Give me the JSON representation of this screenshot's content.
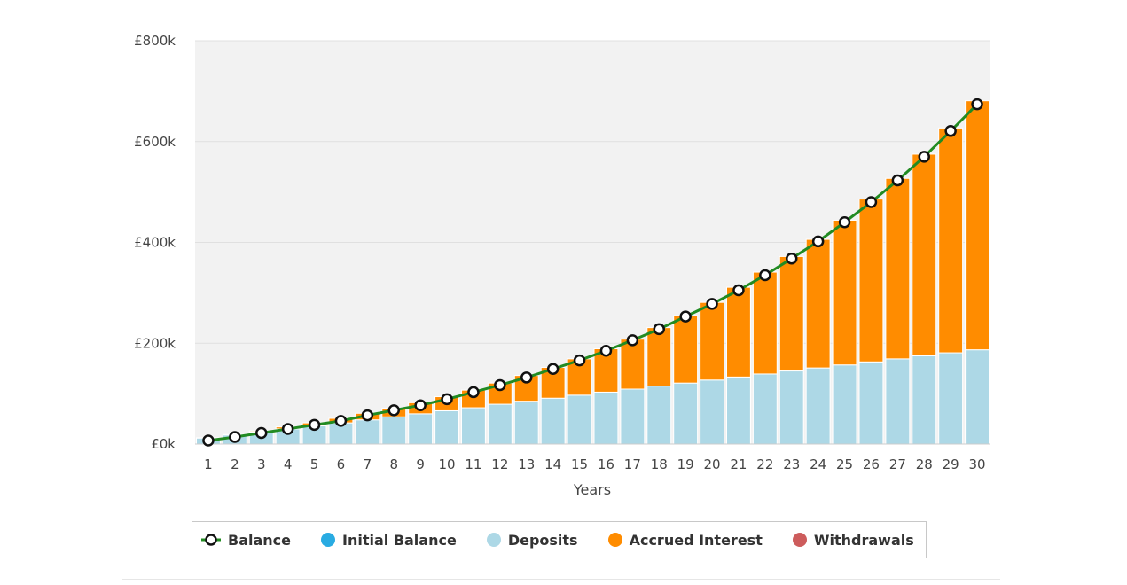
{
  "chart_data": {
    "type": "bar",
    "stacked": true,
    "xlabel": "Years",
    "ylabel": "",
    "ylim": [
      0,
      800000
    ],
    "yticks": [
      0,
      200000,
      400000,
      600000,
      800000
    ],
    "ytick_labels": [
      "£0k",
      "£200k",
      "£400k",
      "£600k",
      "£800k"
    ],
    "grid": true,
    "legend_position": "bottom",
    "categories": [
      "1",
      "2",
      "3",
      "4",
      "5",
      "6",
      "7",
      "8",
      "9",
      "10",
      "11",
      "12",
      "13",
      "14",
      "15",
      "16",
      "17",
      "18",
      "19",
      "20",
      "21",
      "22",
      "23",
      "24",
      "25",
      "26",
      "27",
      "28",
      "29",
      "30"
    ],
    "series": [
      {
        "name": "Initial Balance",
        "kind": "bar",
        "color": "#29abe2",
        "values": [
          0,
          0,
          0,
          0,
          0,
          0,
          0,
          0,
          0,
          0,
          0,
          0,
          0,
          0,
          0,
          0,
          0,
          0,
          0,
          0,
          0,
          0,
          0,
          0,
          0,
          0,
          0,
          0,
          0,
          0
        ]
      },
      {
        "name": "Deposits",
        "kind": "bar",
        "color": "#add8e6",
        "values": [
          12000,
          18000,
          24000,
          30000,
          36000,
          42000,
          48000,
          54000,
          60000,
          66000,
          72000,
          79000,
          85000,
          91000,
          97000,
          103000,
          109000,
          115000,
          121000,
          127000,
          133000,
          139000,
          145000,
          151000,
          157000,
          163000,
          169000,
          175000,
          181000,
          187000
        ]
      },
      {
        "name": "Accrued Interest",
        "kind": "bar",
        "color": "#ff8c00",
        "values": [
          500,
          1000,
          2000,
          4000,
          6000,
          9000,
          13000,
          17000,
          22000,
          28000,
          35000,
          42000,
          51000,
          61000,
          72000,
          86000,
          99000,
          116000,
          134000,
          154000,
          178000,
          202000,
          227000,
          255000,
          287000,
          323000,
          358000,
          400000,
          446000,
          494000
        ]
      },
      {
        "name": "Withdrawals",
        "kind": "bar",
        "color": "#cd5c5c",
        "values": [
          0,
          0,
          0,
          0,
          0,
          0,
          0,
          0,
          0,
          0,
          0,
          0,
          0,
          0,
          0,
          0,
          0,
          0,
          0,
          0,
          0,
          0,
          0,
          0,
          0,
          0,
          0,
          0,
          0,
          0
        ]
      },
      {
        "name": "Balance",
        "kind": "line",
        "color": "#228b22",
        "values": [
          7000,
          14000,
          22000,
          30000,
          38000,
          46000,
          57000,
          67000,
          77000,
          89000,
          103000,
          117000,
          132000,
          149000,
          166000,
          185000,
          206000,
          228000,
          253000,
          278000,
          305000,
          335000,
          368000,
          402000,
          440000,
          480000,
          523000,
          570000,
          621000,
          674000
        ]
      }
    ]
  },
  "legend": [
    {
      "label": "Balance",
      "color": "#228b22",
      "icon": "line-marker"
    },
    {
      "label": "Initial Balance",
      "color": "#29abe2",
      "icon": "circle"
    },
    {
      "label": "Deposits",
      "color": "#add8e6",
      "icon": "circle"
    },
    {
      "label": "Accrued Interest",
      "color": "#ff8c00",
      "icon": "circle"
    },
    {
      "label": "Withdrawals",
      "color": "#cd5c5c",
      "icon": "circle"
    }
  ],
  "colors": {
    "plot_background": "#f2f2f2",
    "grid": "#e0e0e0"
  }
}
